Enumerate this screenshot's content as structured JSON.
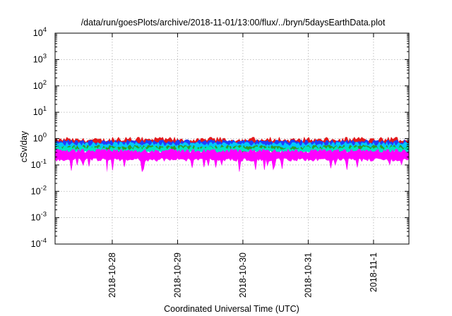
{
  "chart_data": {
    "type": "area",
    "title": "/data/run/goesPlots/archive/2018-11-01/13:00/flux/../bryn/5daysEarthData.plot",
    "ylabel": "cSv/day",
    "xlabel": "Coordinated Universal Time (UTC)",
    "y_scale": "log",
    "ylim": [
      0.0001,
      10000
    ],
    "y_ticks": [
      {
        "value": 0.0001,
        "base": "10",
        "exp": "-4"
      },
      {
        "value": 0.001,
        "base": "10",
        "exp": "-3"
      },
      {
        "value": 0.01,
        "base": "10",
        "exp": "-2"
      },
      {
        "value": 0.1,
        "base": "10",
        "exp": "-1"
      },
      {
        "value": 1,
        "base": "10",
        "exp": "0"
      },
      {
        "value": 10,
        "base": "10",
        "exp": "1"
      },
      {
        "value": 100,
        "base": "10",
        "exp": "2"
      },
      {
        "value": 1000,
        "base": "10",
        "exp": "3"
      },
      {
        "value": 10000,
        "base": "10",
        "exp": "4"
      }
    ],
    "xlim": [
      "2018-10-27 03:00",
      "2018-11-01 13:00"
    ],
    "x_ticks": [
      "2018-10-28",
      "2018-10-29",
      "2018-10-30",
      "2018-10-31",
      "2018-11-1"
    ],
    "x_tick_dates": [
      "2018-10-28",
      "2018-10-29",
      "2018-10-30",
      "2018-10-31",
      "2018-11-01"
    ],
    "grid": true,
    "series": [
      {
        "color": "#e41a1c",
        "values": [
          0.5,
          0.9
        ]
      },
      {
        "color": "#1f3fff",
        "values": [
          0.45,
          0.8
        ]
      },
      {
        "color": "#00c8ff",
        "values": [
          0.4,
          0.65
        ]
      },
      {
        "color": "#2ca02c",
        "values": [
          0.34,
          0.5
        ]
      },
      {
        "color": "#00e5c0",
        "values": [
          0.3,
          0.45
        ]
      },
      {
        "color": "#ff00ff",
        "values": [
          0.16,
          0.35
        ]
      }
    ]
  }
}
